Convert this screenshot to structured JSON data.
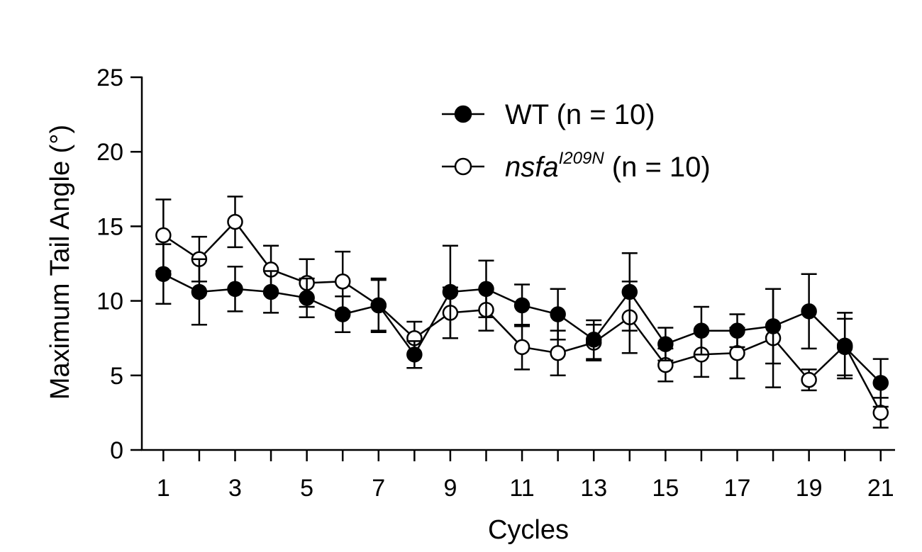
{
  "chart_data": {
    "type": "line",
    "xlabel": "Cycles",
    "ylabel": "Maximum Tail Angle (°)",
    "xlim": [
      0.4,
      21.4
    ],
    "ylim": [
      0,
      25
    ],
    "x": [
      1,
      2,
      3,
      4,
      5,
      6,
      7,
      8,
      9,
      10,
      11,
      12,
      13,
      14,
      15,
      16,
      17,
      18,
      19,
      20,
      21
    ],
    "xticks": [
      1,
      3,
      5,
      7,
      9,
      11,
      13,
      15,
      17,
      19,
      21
    ],
    "xtick_labels": [
      "1",
      "3",
      "5",
      "7",
      "9",
      "11",
      "13",
      "15",
      "17",
      "19",
      "21"
    ],
    "yticks": [
      0,
      5,
      10,
      15,
      20,
      25
    ],
    "ytick_labels": [
      "0",
      "5",
      "10",
      "15",
      "20",
      "25"
    ],
    "grid": false,
    "legend_position": "top-right",
    "series": [
      {
        "name": "WT (n = 10)",
        "marker": "filled-circle",
        "values": [
          11.8,
          10.6,
          10.8,
          10.6,
          10.2,
          9.1,
          9.7,
          6.4,
          10.6,
          10.8,
          9.7,
          9.1,
          7.4,
          10.6,
          7.1,
          8.0,
          8.0,
          8.3,
          9.3,
          6.9,
          4.5
        ],
        "errors": [
          2.0,
          2.2,
          1.5,
          1.4,
          1.3,
          1.2,
          1.8,
          0.9,
          3.1,
          1.9,
          1.4,
          1.7,
          1.3,
          2.6,
          1.1,
          1.6,
          1.1,
          2.5,
          2.5,
          1.9,
          1.6
        ]
      },
      {
        "name": "nsfa",
        "name_superscript": "I209N",
        "name_suffix": " (n = 10)",
        "marker": "open-circle",
        "values": [
          14.4,
          12.8,
          15.3,
          12.1,
          11.2,
          11.3,
          9.7,
          7.5,
          9.2,
          9.4,
          6.9,
          6.5,
          7.2,
          8.9,
          5.7,
          6.4,
          6.5,
          7.5,
          4.7,
          7.0,
          2.5
        ],
        "errors": [
          2.4,
          1.5,
          1.7,
          1.6,
          1.6,
          2.0,
          1.7,
          1.1,
          1.7,
          1.4,
          1.5,
          1.5,
          1.2,
          2.4,
          1.1,
          1.5,
          1.7,
          3.3,
          0.7,
          2.2,
          1.0
        ]
      }
    ]
  }
}
